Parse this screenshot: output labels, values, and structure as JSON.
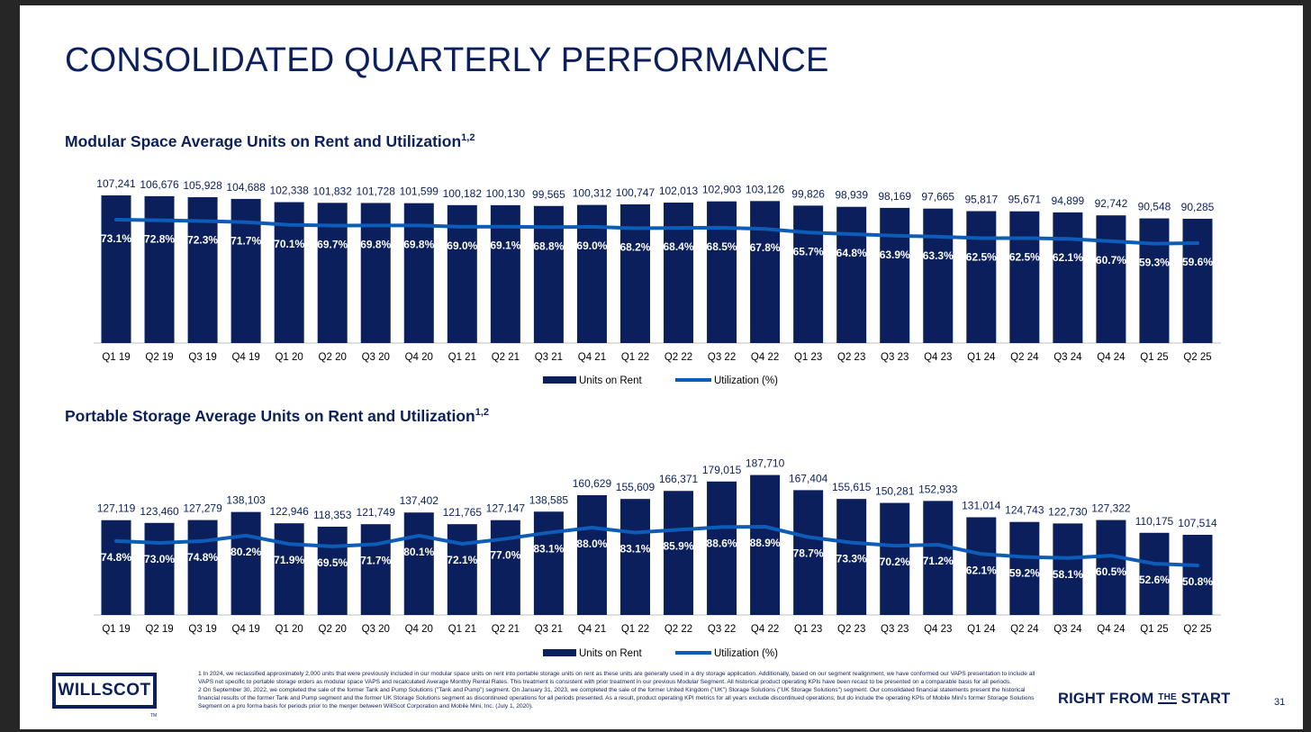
{
  "title": "CONSOLIDATED QUARTERLY PERFORMANCE",
  "colors": {
    "bar": "#0b1f5c",
    "line": "#0d5cb8",
    "text": "#0b1f5c"
  },
  "chart_data": [
    {
      "type": "bar",
      "title": "Modular Space Average Units on Rent and Utilization",
      "title_sup": "1,2",
      "categories": [
        "Q1 19",
        "Q2 19",
        "Q3 19",
        "Q4 19",
        "Q1 20",
        "Q2 20",
        "Q3 20",
        "Q4 20",
        "Q1 21",
        "Q2 21",
        "Q3 21",
        "Q4 21",
        "Q1 22",
        "Q2 22",
        "Q3 22",
        "Q4 22",
        "Q1 23",
        "Q2 23",
        "Q3 23",
        "Q4 23",
        "Q1 24",
        "Q2 24",
        "Q3 24",
        "Q4 24",
        "Q1 25",
        "Q2 25"
      ],
      "series": [
        {
          "name": "Units on Rent",
          "type": "bar",
          "values": [
            107241,
            106676,
            105928,
            104688,
            102338,
            101832,
            101728,
            101599,
            100182,
            100130,
            99565,
            100312,
            100747,
            102013,
            102903,
            103126,
            99826,
            98939,
            98169,
            97665,
            95817,
            95671,
            94899,
            92742,
            90548,
            90285
          ]
        },
        {
          "name": "Utilization (%)",
          "type": "line",
          "values": [
            73.1,
            72.8,
            72.3,
            71.7,
            70.1,
            69.7,
            69.8,
            69.8,
            69.0,
            69.1,
            68.8,
            69.0,
            68.2,
            68.4,
            68.5,
            67.8,
            65.7,
            64.8,
            63.9,
            63.3,
            62.5,
            62.5,
            62.1,
            60.7,
            59.3,
            59.6
          ]
        }
      ],
      "legend": "bottom-center"
    },
    {
      "type": "bar",
      "title": "Portable Storage Average Units on Rent and Utilization",
      "title_sup": "1,2",
      "categories": [
        "Q1 19",
        "Q2 19",
        "Q3 19",
        "Q4 19",
        "Q1 20",
        "Q2 20",
        "Q3 20",
        "Q4 20",
        "Q1 21",
        "Q2 21",
        "Q3 21",
        "Q4 21",
        "Q1 22",
        "Q2 22",
        "Q3 22",
        "Q4 22",
        "Q1 23",
        "Q2 23",
        "Q3 23",
        "Q4 23",
        "Q1 24",
        "Q2 24",
        "Q3 24",
        "Q4 24",
        "Q1 25",
        "Q2 25"
      ],
      "series": [
        {
          "name": "Units on Rent",
          "type": "bar",
          "values": [
            127119,
            123460,
            127279,
            138103,
            122946,
            118353,
            121749,
            137402,
            121765,
            127147,
            138585,
            160629,
            155609,
            166371,
            179015,
            187710,
            167404,
            155615,
            150281,
            152933,
            131014,
            124743,
            122730,
            127322,
            110175,
            107514
          ]
        },
        {
          "name": "Utilization (%)",
          "type": "line",
          "values": [
            74.8,
            73.0,
            74.8,
            80.2,
            71.9,
            69.5,
            71.7,
            80.1,
            72.1,
            77.0,
            83.1,
            88.0,
            83.1,
            85.9,
            88.6,
            88.9,
            78.7,
            73.3,
            70.2,
            71.2,
            62.1,
            59.2,
            58.1,
            60.5,
            52.6,
            50.8
          ]
        }
      ],
      "legend": "bottom-center"
    }
  ],
  "footer": {
    "logo": "WILLSCOT",
    "tm": "TM",
    "notes": [
      "1 In 2024, we reclassified approximately 2,000 units that were previously included in our modular space units on rent into portable storage units on rent as these units are generally used in a dry storage application. Additionally, based on our segment realignment, we have conformed our VAPS presentation to include all VAPS not specific to portable storage orders as modular space VAPS and recalculated Average Monthly Rental Rates. This treatment is consistent with prior treatment in our previous Modular Segment. All historical product operating KPIs have been recast to be presented on a comparable basis for all periods.",
      "2 On September 30, 2022, we completed the sale of the former Tank and Pump Solutions (\"Tank and Pump\") segment. On January 31, 2023, we completed the sale of the former United Kingdom (\"UK\") Storage Solutions (\"UK Storage Solutions\") segment. Our consolidated financial statements present the historical financial results of the former Tank and Pump segment and the former UK Storage Solutions segment as discontinued operations for all periods presented. As a result, product operating KPI metrics for all years exclude discontinued operations, but do include the operating KPIs of Mobile Mini's former Storage Solutions Segment on a pro forma basis for periods prior to the merger between WillScot Corporation and Mobile Mini, Inc. (July 1, 2020)."
    ],
    "tagline_a": "RIGHT FROM ",
    "tagline_the": "THE",
    "tagline_b": " START",
    "page_number": "31"
  }
}
